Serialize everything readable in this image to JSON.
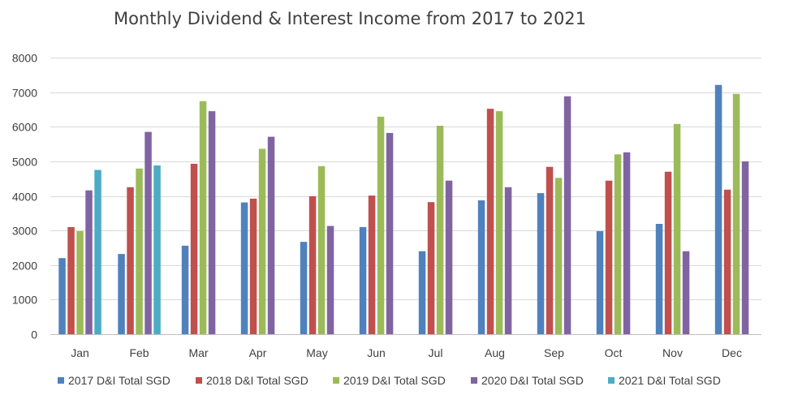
{
  "chart_data": {
    "type": "bar",
    "title": "Monthly Dividend & Interest Income from 2017 to 2021",
    "xlabel": "",
    "ylabel": "",
    "ylim": [
      0,
      8000
    ],
    "yticks": [
      "0",
      "1000",
      "2000",
      "3000",
      "4000",
      "5000",
      "6000",
      "7000",
      "8000"
    ],
    "grid": true,
    "legend_position": "bottom",
    "categories": [
      "Jan",
      "Feb",
      "Mar",
      "Apr",
      "May",
      "Jun",
      "Jul",
      "Aug",
      "Sep",
      "Oct",
      "Nov",
      "Dec"
    ],
    "series": [
      {
        "name": "2017 D&I Total SGD",
        "color": "#4f81bd",
        "values": [
          2200,
          2320,
          2560,
          3810,
          2670,
          3100,
          2400,
          3870,
          4080,
          2980,
          3190,
          7210
        ]
      },
      {
        "name": "2018 D&I Total SGD",
        "color": "#c0504d",
        "values": [
          3100,
          4250,
          4930,
          3920,
          3990,
          4010,
          3820,
          6520,
          4840,
          4440,
          4700,
          4180
        ]
      },
      {
        "name": "2019 D&I Total SGD",
        "color": "#9bbb59",
        "values": [
          2980,
          4790,
          6740,
          5360,
          4860,
          6290,
          6030,
          6450,
          4520,
          5200,
          6080,
          6950
        ]
      },
      {
        "name": "2020 D&I Total SGD",
        "color": "#8064a2",
        "values": [
          4160,
          5850,
          6450,
          5710,
          3130,
          5820,
          4440,
          4250,
          6880,
          5260,
          2400,
          5000
        ]
      },
      {
        "name": "2021 D&I Total SGD",
        "color": "#4bacc6",
        "values": [
          4750,
          4880,
          null,
          null,
          null,
          null,
          null,
          null,
          null,
          null,
          null,
          null
        ]
      }
    ]
  }
}
